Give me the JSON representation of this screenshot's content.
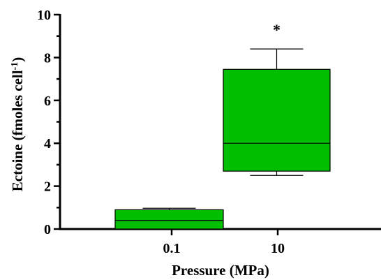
{
  "chart_data": {
    "type": "boxplot",
    "xlabel": "Pressure (MPa)",
    "ylabel": {
      "main": "Ectoine (fmoles cell",
      "superscript": "-1",
      "close": ")"
    },
    "ylim": [
      0,
      10
    ],
    "yticks": [
      "0",
      "2",
      "4",
      "6",
      "8",
      "10"
    ],
    "categories": [
      "0.1",
      "10"
    ],
    "boxes": [
      {
        "category": "0.1",
        "min": 0.0,
        "q1": 0.0,
        "median": 0.4,
        "q3": 0.9,
        "max": 0.97,
        "annotation": ""
      },
      {
        "category": "10",
        "min": 2.5,
        "q1": 2.7,
        "median": 4.0,
        "q3": 7.45,
        "max": 8.4,
        "annotation": "*"
      }
    ],
    "box_color": "#00bf00",
    "edge_color": "#000000",
    "grid": false,
    "legend": "none"
  }
}
